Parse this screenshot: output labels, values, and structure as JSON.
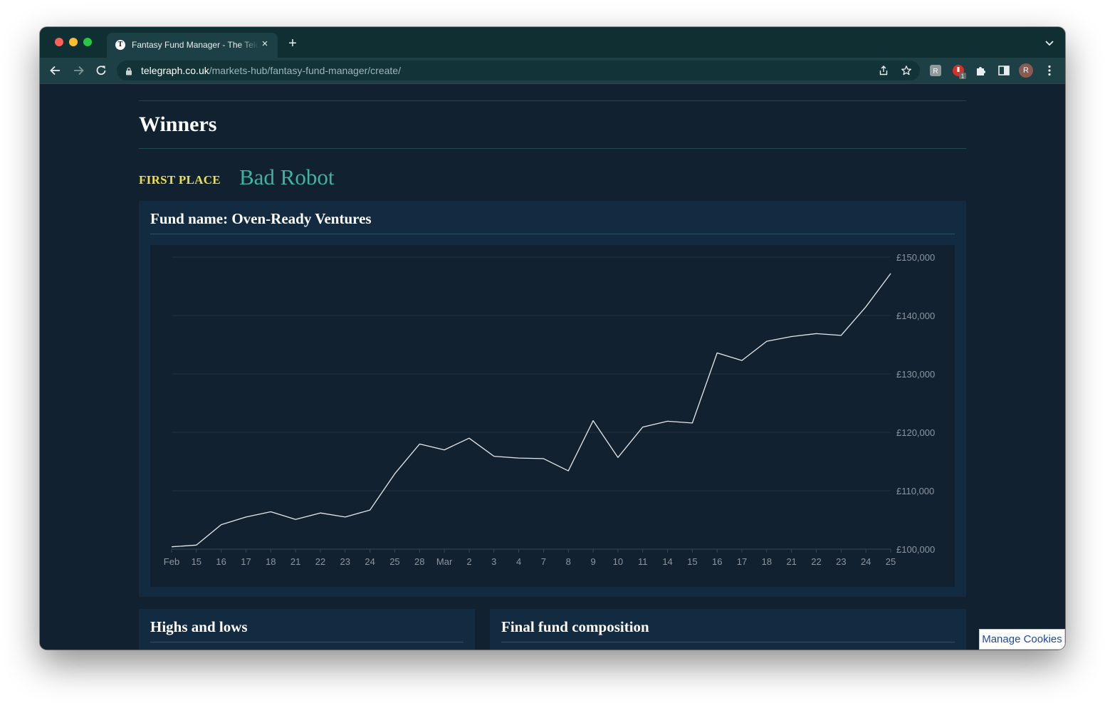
{
  "browser": {
    "tab_title": "Fantasy Fund Manager - The Telegraph",
    "tab_favicon_glyph": "T",
    "tab_close_glyph": "×",
    "new_tab_glyph": "+",
    "url_host": "telegraph.co.uk",
    "url_path": "/markets-hub/fantasy-fund-manager/create/",
    "extension_badge": "1",
    "profile_initial": "R",
    "icons": [
      "back-icon",
      "forward-icon",
      "reload-icon",
      "lock-icon",
      "share-icon",
      "star-icon",
      "extension-icon",
      "puzzle-icon",
      "sidebar-icon",
      "menu-icon"
    ]
  },
  "page": {
    "section_title": "Winners",
    "place_label": "FIRST PLACE",
    "winner_name": "Bad Robot",
    "fund_card_title": "Fund name: Oven-Ready Ventures",
    "highs_lows_title": "Highs and lows",
    "composition_title": "Final fund composition"
  },
  "cookies": {
    "manage_label": "Manage Cookies"
  },
  "colors": {
    "page_bg": "#11212f",
    "card_bg": "#132b40",
    "accent_yellow": "#f0df4d",
    "accent_teal": "#3cb59e",
    "line": "#e6e9ec"
  },
  "chart_data": {
    "type": "line",
    "x": [
      "Feb",
      "15",
      "16",
      "17",
      "18",
      "21",
      "22",
      "23",
      "24",
      "25",
      "28",
      "Mar",
      "2",
      "3",
      "4",
      "7",
      "8",
      "9",
      "10",
      "11",
      "14",
      "15",
      "16",
      "17",
      "18",
      "21",
      "22",
      "23",
      "24",
      "25"
    ],
    "series": [
      {
        "values": [
          100400,
          100700,
          104200,
          105500,
          106400,
          105100,
          106200,
          105500,
          106700,
          112900,
          118000,
          117000,
          119000,
          115900,
          115600,
          115500,
          113400,
          122000,
          115700,
          120900,
          121900,
          121600,
          133600,
          132300,
          135600,
          136400,
          136900,
          136600,
          141500,
          147200
        ]
      }
    ],
    "y_ticks": [
      "£150,000",
      "£140,000",
      "£130,000",
      "£120,000",
      "£110,000",
      "£100,000"
    ],
    "y_tick_values": [
      150000,
      140000,
      130000,
      120000,
      110000,
      100000
    ],
    "ylim": [
      100000,
      150000
    ],
    "grid": true,
    "y_axis_side": "right"
  }
}
